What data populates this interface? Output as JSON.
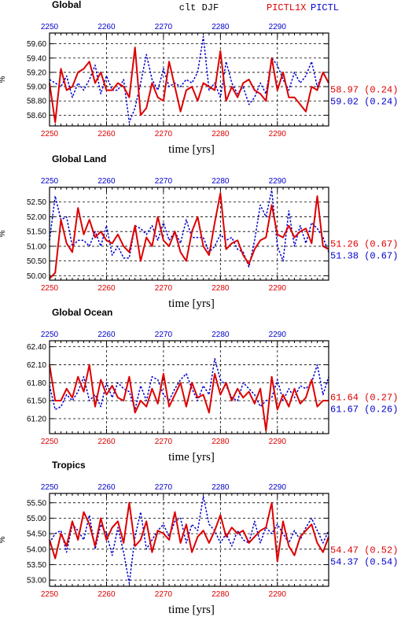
{
  "header": {
    "variable_season": "clt  DJF",
    "series_a_name": "PICTL1X",
    "series_b_name": "PICTL",
    "series_a_color": "#dd0000",
    "series_b_color": "#0000cc"
  },
  "chart_data": [
    {
      "type": "line",
      "title": "Global",
      "ylabel": "%",
      "xlabel": "time [yrs]",
      "xlim": [
        2250,
        2299
      ],
      "ylim": [
        58.45,
        59.75
      ],
      "xticks": [
        "2250",
        "2260",
        "2270",
        "2280",
        "2290"
      ],
      "yticks": [
        "58.60",
        "58.80",
        "59.00",
        "59.20",
        "59.40",
        "59.60"
      ],
      "stats": {
        "a": "58.97 (0.24)",
        "b": "59.02 (0.24)"
      },
      "x": [
        2250,
        2251,
        2252,
        2253,
        2254,
        2255,
        2256,
        2257,
        2258,
        2259,
        2260,
        2261,
        2262,
        2263,
        2264,
        2265,
        2266,
        2267,
        2268,
        2269,
        2270,
        2271,
        2272,
        2273,
        2274,
        2275,
        2276,
        2277,
        2278,
        2279,
        2280,
        2281,
        2282,
        2283,
        2284,
        2285,
        2286,
        2287,
        2288,
        2289,
        2290,
        2291,
        2292,
        2293,
        2294,
        2295,
        2296,
        2297,
        2298,
        2299
      ],
      "series": [
        {
          "name": "PICTL1X",
          "values": [
            59.05,
            58.5,
            59.25,
            58.95,
            59.0,
            59.2,
            59.25,
            59.35,
            59.05,
            59.2,
            58.95,
            58.95,
            59.05,
            59.0,
            58.85,
            59.55,
            58.6,
            58.7,
            59.05,
            58.85,
            58.8,
            59.35,
            59.0,
            58.65,
            58.95,
            59.0,
            58.8,
            59.05,
            59.0,
            58.95,
            59.5,
            58.8,
            59.0,
            58.85,
            59.05,
            59.1,
            58.95,
            58.9,
            58.8,
            59.4,
            58.95,
            59.2,
            58.85,
            58.85,
            58.75,
            58.65,
            59.0,
            58.95,
            59.2,
            59.05
          ]
        },
        {
          "name": "PICTL",
          "values": [
            59.1,
            59.05,
            59.0,
            59.15,
            58.85,
            59.05,
            58.95,
            59.1,
            59.3,
            58.9,
            59.15,
            58.95,
            58.95,
            59.1,
            58.5,
            58.7,
            59.05,
            59.45,
            59.1,
            58.95,
            59.25,
            59.0,
            59.05,
            59.0,
            59.1,
            59.05,
            59.2,
            59.7,
            58.95,
            59.05,
            58.85,
            59.35,
            59.05,
            58.9,
            59.0,
            58.75,
            58.85,
            59.05,
            58.9,
            59.4,
            59.3,
            59.1,
            58.95,
            59.2,
            59.05,
            59.15,
            59.35,
            59.0,
            59.2,
            59.05
          ]
        }
      ]
    },
    {
      "type": "line",
      "title": "Global Land",
      "ylabel": "%",
      "xlabel": "time [yrs]",
      "xlim": [
        2250,
        2299
      ],
      "ylim": [
        49.85,
        53.0
      ],
      "xticks": [
        "2250",
        "2260",
        "2270",
        "2280",
        "2290"
      ],
      "yticks": [
        "50.00",
        "50.50",
        "51.00",
        "51.50",
        "52.00",
        "52.50"
      ],
      "stats": {
        "a": "51.26 (0.67)",
        "b": "51.38 (0.67)"
      },
      "x": [
        2250,
        2251,
        2252,
        2253,
        2254,
        2255,
        2256,
        2257,
        2258,
        2259,
        2260,
        2261,
        2262,
        2263,
        2264,
        2265,
        2266,
        2267,
        2268,
        2269,
        2270,
        2271,
        2272,
        2273,
        2274,
        2275,
        2276,
        2277,
        2278,
        2279,
        2280,
        2281,
        2282,
        2283,
        2284,
        2285,
        2286,
        2287,
        2288,
        2289,
        2290,
        2291,
        2292,
        2293,
        2294,
        2295,
        2296,
        2297,
        2298,
        2299
      ],
      "series": [
        {
          "name": "PICTL1X",
          "values": [
            49.9,
            50.1,
            51.9,
            51.1,
            50.8,
            52.3,
            51.4,
            51.9,
            51.3,
            51.5,
            51.2,
            51.1,
            51.4,
            51.0,
            50.8,
            51.7,
            50.5,
            51.3,
            51.0,
            52.0,
            51.2,
            51.0,
            51.5,
            50.8,
            50.5,
            51.5,
            52.0,
            51.0,
            50.7,
            51.8,
            52.8,
            50.9,
            51.1,
            51.2,
            50.7,
            50.4,
            50.9,
            51.2,
            51.3,
            52.4,
            51.4,
            51.3,
            51.7,
            51.3,
            51.5,
            51.6,
            51.1,
            52.7,
            51.0,
            50.9
          ]
        },
        {
          "name": "PICTL",
          "values": [
            51.2,
            52.7,
            51.9,
            52.0,
            51.0,
            51.2,
            51.2,
            51.0,
            51.5,
            51.0,
            51.7,
            50.7,
            51.0,
            50.6,
            50.6,
            51.7,
            51.6,
            51.4,
            51.7,
            51.2,
            51.8,
            51.2,
            51.5,
            51.1,
            51.9,
            51.3,
            51.3,
            51.3,
            50.8,
            51.0,
            51.4,
            51.2,
            51.3,
            50.9,
            50.8,
            50.3,
            51.2,
            52.4,
            52.0,
            52.9,
            51.0,
            50.5,
            52.2,
            51.0,
            51.7,
            51.1,
            51.8,
            51.6,
            51.3,
            50.8
          ]
        }
      ]
    },
    {
      "type": "line",
      "title": "Global Ocean",
      "ylabel": "",
      "xlabel": "time [yrs]",
      "xlim": [
        2250,
        2299
      ],
      "ylim": [
        60.95,
        62.5
      ],
      "xticks": [
        "2250",
        "2260",
        "2270",
        "2280",
        "2290"
      ],
      "yticks": [
        "61.20",
        "61.50",
        "61.80",
        "62.10",
        "62.40"
      ],
      "stats": {
        "a": "61.64 (0.27)",
        "b": "61.67 (0.26)"
      },
      "x": [
        2250,
        2251,
        2252,
        2253,
        2254,
        2255,
        2256,
        2257,
        2258,
        2259,
        2260,
        2261,
        2262,
        2263,
        2264,
        2265,
        2266,
        2267,
        2268,
        2269,
        2270,
        2271,
        2272,
        2273,
        2274,
        2275,
        2276,
        2277,
        2278,
        2279,
        2280,
        2281,
        2282,
        2283,
        2284,
        2285,
        2286,
        2287,
        2288,
        2289,
        2290,
        2291,
        2292,
        2293,
        2294,
        2295,
        2296,
        2297,
        2298,
        2299
      ],
      "series": [
        {
          "name": "PICTL1X",
          "values": [
            62.1,
            61.5,
            61.5,
            61.7,
            61.55,
            61.9,
            61.65,
            62.1,
            61.4,
            61.85,
            61.6,
            61.75,
            61.55,
            61.5,
            61.9,
            61.3,
            61.5,
            61.4,
            61.7,
            61.45,
            61.95,
            61.4,
            61.6,
            61.8,
            61.4,
            61.8,
            61.55,
            61.6,
            61.3,
            61.95,
            61.6,
            61.8,
            61.5,
            61.7,
            61.55,
            61.65,
            61.45,
            61.7,
            61.0,
            61.9,
            61.35,
            61.6,
            61.4,
            61.7,
            61.45,
            61.55,
            61.85,
            61.4,
            61.5,
            61.5
          ]
        },
        {
          "name": "PICTL",
          "values": [
            61.75,
            61.35,
            61.4,
            61.6,
            61.5,
            61.65,
            61.9,
            61.5,
            61.6,
            61.4,
            61.8,
            61.55,
            61.8,
            61.7,
            61.65,
            61.35,
            61.75,
            61.5,
            61.9,
            61.85,
            61.6,
            61.5,
            61.7,
            61.85,
            61.95,
            61.7,
            61.5,
            61.75,
            61.6,
            62.2,
            61.85,
            61.75,
            61.55,
            61.5,
            61.8,
            61.7,
            61.6,
            61.4,
            61.5,
            61.55,
            61.85,
            61.5,
            61.7,
            61.55,
            61.75,
            61.7,
            61.8,
            62.1,
            61.6,
            61.9
          ]
        }
      ]
    },
    {
      "type": "line",
      "title": "Tropics",
      "ylabel": "%",
      "xlabel": "time [yrs]",
      "xlim": [
        2250,
        2299
      ],
      "ylim": [
        52.8,
        55.8
      ],
      "xticks": [
        "2250",
        "2260",
        "2270",
        "2280",
        "2290"
      ],
      "yticks": [
        "53.00",
        "53.50",
        "54.00",
        "54.50",
        "55.00",
        "55.50"
      ],
      "stats": {
        "a": "54.47 (0.52)",
        "b": "54.37 (0.54)"
      },
      "x": [
        2250,
        2251,
        2252,
        2253,
        2254,
        2255,
        2256,
        2257,
        2258,
        2259,
        2260,
        2261,
        2262,
        2263,
        2264,
        2265,
        2266,
        2267,
        2268,
        2269,
        2270,
        2271,
        2272,
        2273,
        2274,
        2275,
        2276,
        2277,
        2278,
        2279,
        2280,
        2281,
        2282,
        2283,
        2284,
        2285,
        2286,
        2287,
        2288,
        2289,
        2290,
        2291,
        2292,
        2293,
        2294,
        2295,
        2296,
        2297,
        2298,
        2299
      ],
      "series": [
        {
          "name": "PICTL1X",
          "values": [
            54.3,
            53.7,
            54.5,
            54.1,
            54.9,
            54.3,
            55.2,
            54.8,
            54.1,
            55.0,
            54.3,
            54.7,
            54.9,
            54.2,
            55.5,
            54.1,
            54.3,
            54.9,
            53.9,
            54.6,
            54.5,
            54.3,
            55.2,
            54.2,
            54.8,
            53.9,
            54.4,
            54.6,
            54.2,
            54.6,
            55.1,
            54.4,
            54.7,
            54.5,
            54.6,
            54.2,
            54.4,
            54.6,
            54.7,
            55.5,
            53.6,
            54.9,
            54.1,
            53.8,
            54.4,
            54.6,
            54.8,
            54.2,
            53.9,
            54.4
          ]
        },
        {
          "name": "PICTL",
          "values": [
            54.2,
            54.5,
            54.6,
            53.9,
            54.8,
            54.6,
            54.3,
            55.1,
            54.0,
            54.8,
            54.5,
            53.8,
            54.7,
            53.9,
            52.9,
            54.4,
            55.2,
            54.0,
            54.3,
            54.6,
            54.8,
            54.4,
            54.9,
            55.0,
            54.2,
            54.8,
            54.6,
            55.7,
            54.8,
            54.6,
            54.2,
            54.5,
            54.1,
            54.6,
            54.3,
            54.2,
            54.9,
            54.2,
            54.7,
            54.5,
            54.8,
            54.5,
            54.2,
            54.6,
            54.3,
            54.7,
            55.0,
            54.6,
            54.2,
            54.6
          ]
        }
      ]
    }
  ]
}
